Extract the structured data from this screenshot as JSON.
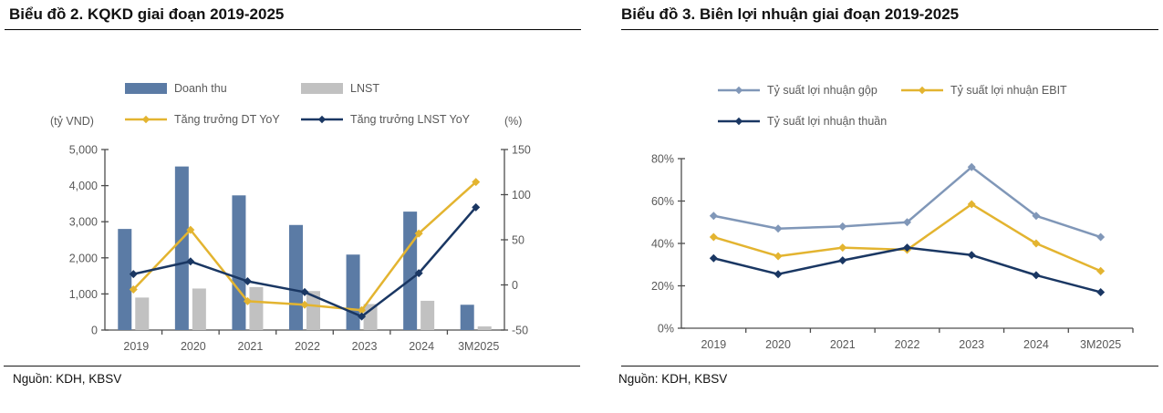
{
  "page": {
    "source_note": "Nguồn: KDH, KBSV"
  },
  "chart_data": [
    {
      "type": "bar",
      "subtype": "combo-bar-line-dual-axis",
      "title": "Biểu đồ 2. KQKD giai đoạn 2019-2025",
      "source": "Nguồn: KDH, KBSV",
      "categories": [
        "2019",
        "2020",
        "2021",
        "2022",
        "2023",
        "2024",
        "3M2025"
      ],
      "left_axis": {
        "label": "(tỷ VND)",
        "min": 0,
        "max": 5000,
        "tick_values": [
          0,
          1000,
          2000,
          3000,
          4000,
          5000
        ],
        "tick_labels": [
          "0",
          "1,000",
          "2,000",
          "3,000",
          "4,000",
          "5,000"
        ]
      },
      "right_axis": {
        "label": "(%)",
        "min": -50,
        "max": 150,
        "tick_values": [
          -50,
          0,
          50,
          100,
          150
        ],
        "tick_labels": [
          "-50",
          "0",
          "50",
          "100",
          "150"
        ]
      },
      "series": [
        {
          "name": "Doanh thu",
          "type": "bar",
          "axis": "left",
          "color": "#5B7BA5",
          "values": [
            2800,
            4530,
            3730,
            2910,
            2090,
            3280,
            700
          ]
        },
        {
          "name": "LNST",
          "type": "bar",
          "axis": "left",
          "color": "#C1C1C1",
          "values": [
            900,
            1150,
            1190,
            1080,
            720,
            810,
            100
          ]
        },
        {
          "name": "Tăng trưởng DT YoY",
          "type": "line",
          "axis": "right",
          "color": "#E3B430",
          "values": [
            -5,
            61,
            -18,
            -22,
            -28,
            57,
            114
          ]
        },
        {
          "name": "Tăng trưởng LNST YoY",
          "type": "line",
          "axis": "right",
          "color": "#1A3763",
          "values": [
            12,
            26,
            4,
            -8,
            -35,
            13,
            86
          ]
        }
      ],
      "grid": false,
      "legend_position": "top"
    },
    {
      "type": "line",
      "title": "Biểu đồ 3. Biên lợi nhuận giai đoạn 2019-2025",
      "source": "Nguồn: KDH, KBSV",
      "categories": [
        "2019",
        "2020",
        "2021",
        "2022",
        "2023",
        "2024",
        "3M2025"
      ],
      "y_axis": {
        "min": 0,
        "max": 80,
        "tick_values": [
          0,
          20,
          40,
          60,
          80
        ],
        "tick_labels": [
          "0%",
          "20%",
          "40%",
          "60%",
          "80%"
        ]
      },
      "series": [
        {
          "name": "Tỷ suất lợi nhuận gộp",
          "type": "line",
          "color": "#8097B8",
          "values": [
            53,
            47,
            48,
            50,
            76,
            53,
            43
          ]
        },
        {
          "name": "Tỷ suất lợi nhuận EBIT",
          "type": "line",
          "color": "#E3B430",
          "values": [
            43,
            34,
            38,
            37,
            58.5,
            40,
            27
          ]
        },
        {
          "name": "Tỷ suất lợi nhuận thuần",
          "type": "line",
          "color": "#1A3763",
          "values": [
            33,
            25.5,
            32,
            38,
            34.5,
            25,
            17
          ]
        }
      ],
      "grid": false,
      "legend_position": "top"
    }
  ]
}
